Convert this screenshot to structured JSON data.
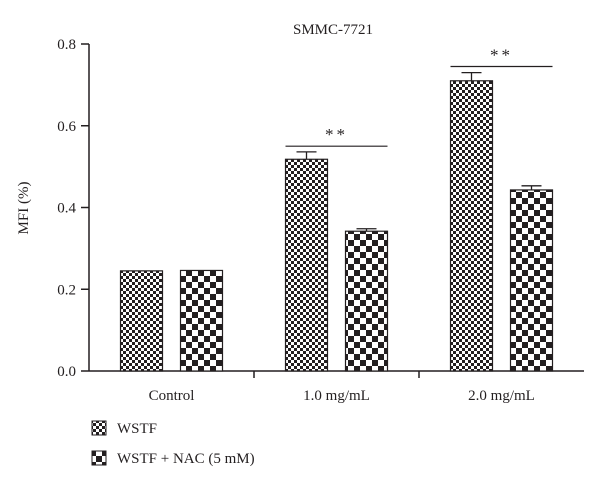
{
  "chart_data": {
    "type": "bar",
    "title": "SMMC-7721",
    "xlabel": "",
    "ylabel": "MFI (%)",
    "ylim": [
      0,
      0.8
    ],
    "yticks": [
      "0.0",
      "0.2",
      "0.4",
      "0.6",
      "0.8"
    ],
    "categories": [
      "Control",
      "1.0 mg/mL",
      "2.0 mg/mL"
    ],
    "series": [
      {
        "name": "WSTF",
        "values": [
          0.245,
          0.518,
          0.71
        ],
        "errors": [
          0,
          0.018,
          0.02
        ],
        "pattern": "fine-checker"
      },
      {
        "name": "WSTF + NAC (5 mM)",
        "values": [
          0.246,
          0.342,
          0.443
        ],
        "errors": [
          0,
          0.006,
          0.01
        ],
        "pattern": "coarse-checker"
      }
    ],
    "significance": [
      {
        "category_index": 1,
        "label": "**",
        "y": 0.55
      },
      {
        "category_index": 2,
        "label": "**",
        "y": 0.745
      }
    ],
    "grid": false,
    "legend": "bottom-left",
    "colors": {
      "ink": "#231f20",
      "background": "#ffffff"
    }
  }
}
